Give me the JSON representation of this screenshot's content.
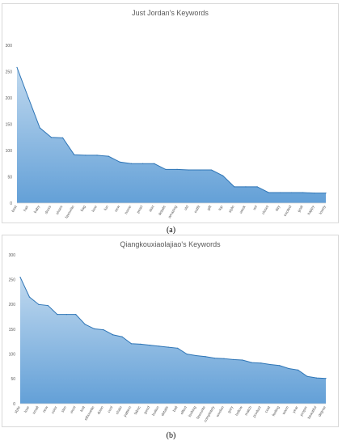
{
  "chart_data": [
    {
      "type": "area",
      "title": "Just Jordan's Keywords",
      "caption": "(a)",
      "ylim": [
        0,
        300
      ],
      "yticks": [
        0,
        50,
        100,
        150,
        200,
        250,
        300
      ],
      "grid": false,
      "legend": "none",
      "color": "#5b9bd5",
      "categories": [
        "best",
        "hair",
        "baby",
        "dress",
        "shoes",
        "favourite",
        "bag",
        "love",
        "fun",
        "new",
        "home",
        "pearl",
        "skirt",
        "details",
        "amazing",
        "old",
        "outfit",
        "gift",
        "top",
        "style",
        "week",
        "vel",
        "closet",
        "day",
        "excited",
        "goal",
        "happy",
        "lovely"
      ],
      "values": [
        258,
        200,
        143,
        125,
        124,
        92,
        91,
        91,
        89,
        78,
        75,
        75,
        75,
        64,
        64,
        63,
        63,
        63,
        52,
        31,
        31,
        31,
        20,
        20,
        20,
        20,
        19,
        19
      ]
    },
    {
      "type": "area",
      "title": "Qiangkouxiaolajiao's Keywords",
      "caption": "(b)",
      "ylim": [
        0,
        300
      ],
      "yticks": [
        0,
        50,
        100,
        150,
        200,
        250,
        300
      ],
      "grid": false,
      "legend": "none",
      "color": "#5b9bd5",
      "categories": [
        "style",
        "love",
        "small",
        "new",
        "color",
        "slim",
        "wool",
        "knit",
        "silhouette",
        "down",
        "cool",
        "chain",
        "pattern",
        "fabric",
        "good",
        "button",
        "details",
        "ball",
        "effect",
        "looking",
        "favourite",
        "completely",
        "woolen",
        "grey",
        "hollow",
        "match",
        "product",
        "coat",
        "feeling",
        "warm",
        "year",
        "proper",
        "beautiful",
        "degree"
      ],
      "values": [
        255,
        215,
        200,
        198,
        180,
        180,
        180,
        160,
        151,
        149,
        139,
        135,
        121,
        120,
        118,
        116,
        114,
        112,
        100,
        97,
        95,
        92,
        91,
        89,
        88,
        83,
        82,
        79,
        77,
        71,
        68,
        55,
        52,
        51
      ]
    }
  ]
}
